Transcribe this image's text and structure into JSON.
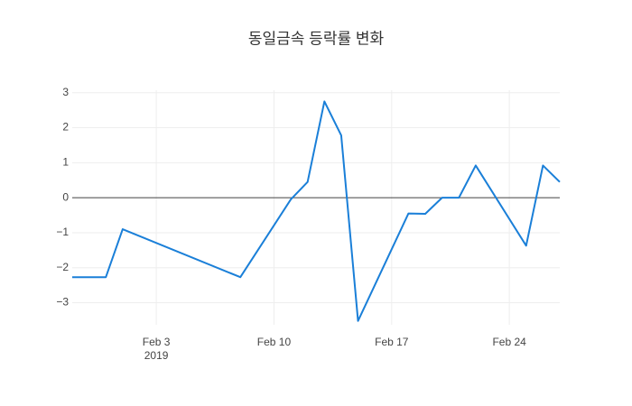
{
  "chart_data": {
    "type": "line",
    "title": "동일금속 등락률 변화",
    "x": [
      "2019-01-29",
      "2019-01-31",
      "2019-02-01",
      "2019-02-08",
      "2019-02-11",
      "2019-02-12",
      "2019-02-13",
      "2019-02-14",
      "2019-02-15",
      "2019-02-18",
      "2019-02-19",
      "2019-02-20",
      "2019-02-21",
      "2019-02-22",
      "2019-02-25",
      "2019-02-26",
      "2019-02-27"
    ],
    "series": [
      {
        "name": "등락률",
        "color": "#1a7fd8",
        "values": [
          -2.27,
          -2.27,
          -0.9,
          -2.27,
          -0.05,
          0.45,
          2.75,
          1.78,
          -3.52,
          -0.45,
          -0.46,
          0,
          0,
          0.92,
          -1.37,
          0.92,
          0.45
        ]
      }
    ],
    "xlim": [
      "2019-01-29",
      "2019-02-27"
    ],
    "xticks": [
      {
        "value": "2019-02-03",
        "label": "Feb 3"
      },
      {
        "value": "2019-02-10",
        "label": "Feb 10"
      },
      {
        "value": "2019-02-17",
        "label": "Feb 17"
      },
      {
        "value": "2019-02-24",
        "label": "Feb 24"
      }
    ],
    "xtick_year": "2019",
    "ylim": [
      -3.63,
      3.07
    ],
    "yticks": [
      {
        "value": -3,
        "label": "−3"
      },
      {
        "value": -2,
        "label": "−2"
      },
      {
        "value": -1,
        "label": "−1"
      },
      0,
      1,
      2,
      3
    ],
    "grid": true,
    "zeroline": true
  }
}
